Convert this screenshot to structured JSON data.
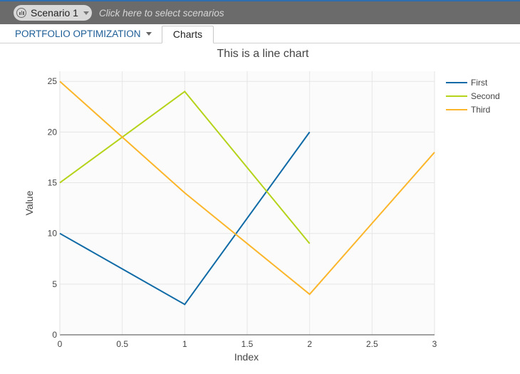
{
  "header": {
    "scenario_label": "Scenario 1",
    "scenario_hint": "Click here to select scenarios"
  },
  "tabs": {
    "portfolio_label": "PORTFOLIO OPTIMIZATION",
    "charts_label": "Charts"
  },
  "colors": {
    "topbar": "#6b6b6b",
    "accent": "#1d5e96",
    "first": "#0f6aa6",
    "second": "#b5d31a",
    "third": "#fbb62b"
  },
  "chart_data": {
    "type": "line",
    "title": "This is a line chart",
    "xlabel": "Index",
    "ylabel": "Value",
    "xlim": [
      0,
      3
    ],
    "ylim": [
      0,
      26
    ],
    "xticks": [
      "0",
      "0.5",
      "1",
      "1.5",
      "2",
      "2.5",
      "3"
    ],
    "yticks": [
      "0",
      "5",
      "10",
      "15",
      "20",
      "25"
    ],
    "grid": true,
    "legend_position": "top-right",
    "series": [
      {
        "name": "First",
        "color": "#0f6aa6",
        "x": [
          0,
          1,
          2
        ],
        "values": [
          10,
          3,
          20
        ]
      },
      {
        "name": "Second",
        "color": "#b5d31a",
        "x": [
          0,
          1,
          2
        ],
        "values": [
          15,
          24,
          9
        ]
      },
      {
        "name": "Third",
        "color": "#fbb62b",
        "x": [
          0,
          1,
          2,
          3
        ],
        "values": [
          25,
          14,
          4,
          18
        ]
      }
    ]
  }
}
